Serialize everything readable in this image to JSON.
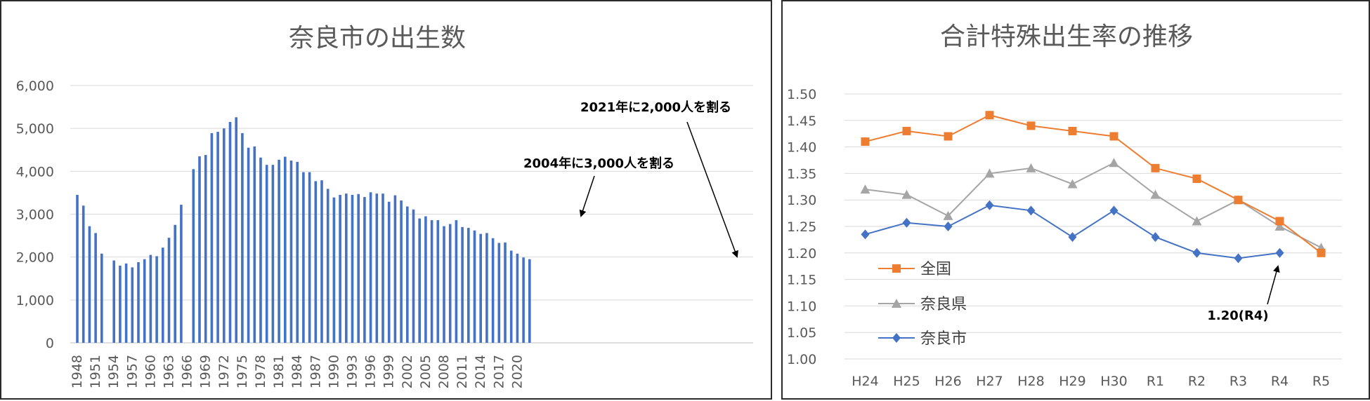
{
  "chart_data": [
    {
      "type": "bar",
      "title": "奈良市の出生数",
      "ylim": [
        0,
        6000
      ],
      "yticks": [
        "0",
        "1,000",
        "2,000",
        "3,000",
        "4,000",
        "5,000",
        "6,000"
      ],
      "ytick_values": [
        0,
        1000,
        2000,
        3000,
        4000,
        5000,
        6000
      ],
      "xtick_labels": [
        "1948",
        "1951",
        "1954",
        "1957",
        "1960",
        "1963",
        "1966",
        "1969",
        "1972",
        "1975",
        "1978",
        "1981",
        "1984",
        "1987",
        "1990",
        "1993",
        "1996",
        "1999",
        "2002",
        "2005",
        "2008",
        "2011",
        "2014",
        "2017",
        "2020"
      ],
      "categories": [
        1948,
        1949,
        1950,
        1951,
        1952,
        1953,
        1954,
        1955,
        1956,
        1957,
        1958,
        1959,
        1960,
        1961,
        1962,
        1963,
        1964,
        1965,
        1966,
        1967,
        1968,
        1969,
        1970,
        1971,
        1972,
        1973,
        1974,
        1975,
        1976,
        1977,
        1978,
        1979,
        1980,
        1981,
        1982,
        1983,
        1984,
        1985,
        1986,
        1987,
        1988,
        1989,
        1990,
        1991,
        1992,
        1993,
        1994,
        1995,
        1996,
        1997,
        1998,
        1999,
        2000,
        2001,
        2002,
        2003,
        2004,
        2005,
        2006,
        2007,
        2008,
        2009,
        2010,
        2011,
        2012,
        2013,
        2014,
        2015,
        2016,
        2017,
        2018,
        2019,
        2020,
        2021,
        2022
      ],
      "values": [
        3450,
        3200,
        2720,
        2560,
        2080,
        null,
        1920,
        1800,
        1850,
        1760,
        1880,
        1950,
        2050,
        2020,
        2220,
        2450,
        2750,
        3220,
        null,
        4050,
        4350,
        4380,
        4890,
        4920,
        5000,
        5150,
        5260,
        4890,
        4550,
        4580,
        4320,
        4150,
        4150,
        4270,
        4340,
        4250,
        4220,
        3980,
        3980,
        3770,
        3790,
        3590,
        3390,
        3450,
        3480,
        3450,
        3470,
        3400,
        3510,
        3480,
        3480,
        3290,
        3440,
        3320,
        3180,
        3110,
        2900,
        2950,
        2860,
        2860,
        2720,
        2770,
        2860,
        2700,
        2680,
        2620,
        2540,
        2560,
        2440,
        2330,
        2340,
        2150,
        2080,
        1990,
        1950
      ],
      "annotations": [
        "2004年に3,000人を割る",
        "2021年に2,000人を割る"
      ]
    },
    {
      "type": "line",
      "title": "合計特殊出生率の推移",
      "ylim": [
        1.0,
        1.5
      ],
      "yticks": [
        "1.00",
        "1.05",
        "1.10",
        "1.15",
        "1.20",
        "1.25",
        "1.30",
        "1.35",
        "1.40",
        "1.45",
        "1.50"
      ],
      "ytick_values": [
        1.0,
        1.05,
        1.1,
        1.15,
        1.2,
        1.25,
        1.3,
        1.35,
        1.4,
        1.45,
        1.5
      ],
      "categories": [
        "H24",
        "H25",
        "H26",
        "H27",
        "H28",
        "H29",
        "H30",
        "R1",
        "R2",
        "R3",
        "R4",
        "R5"
      ],
      "series": [
        {
          "name": "全国",
          "color": "#ed7d31",
          "marker": "square",
          "values": [
            1.41,
            1.43,
            1.42,
            1.46,
            1.44,
            1.43,
            1.42,
            1.36,
            1.34,
            1.3,
            1.26,
            1.2
          ]
        },
        {
          "name": "奈良県",
          "color": "#a5a5a5",
          "marker": "triangle",
          "values": [
            1.32,
            1.31,
            1.27,
            1.35,
            1.36,
            1.33,
            1.37,
            1.31,
            1.26,
            1.3,
            1.25,
            1.21
          ]
        },
        {
          "name": "奈良市",
          "color": "#4472c4",
          "marker": "diamond",
          "values": [
            1.235,
            1.257,
            1.25,
            1.29,
            1.28,
            1.23,
            1.28,
            1.23,
            1.2,
            1.19,
            1.2,
            null
          ]
        }
      ],
      "annotations": [
        "1.20(R4)"
      ]
    }
  ]
}
